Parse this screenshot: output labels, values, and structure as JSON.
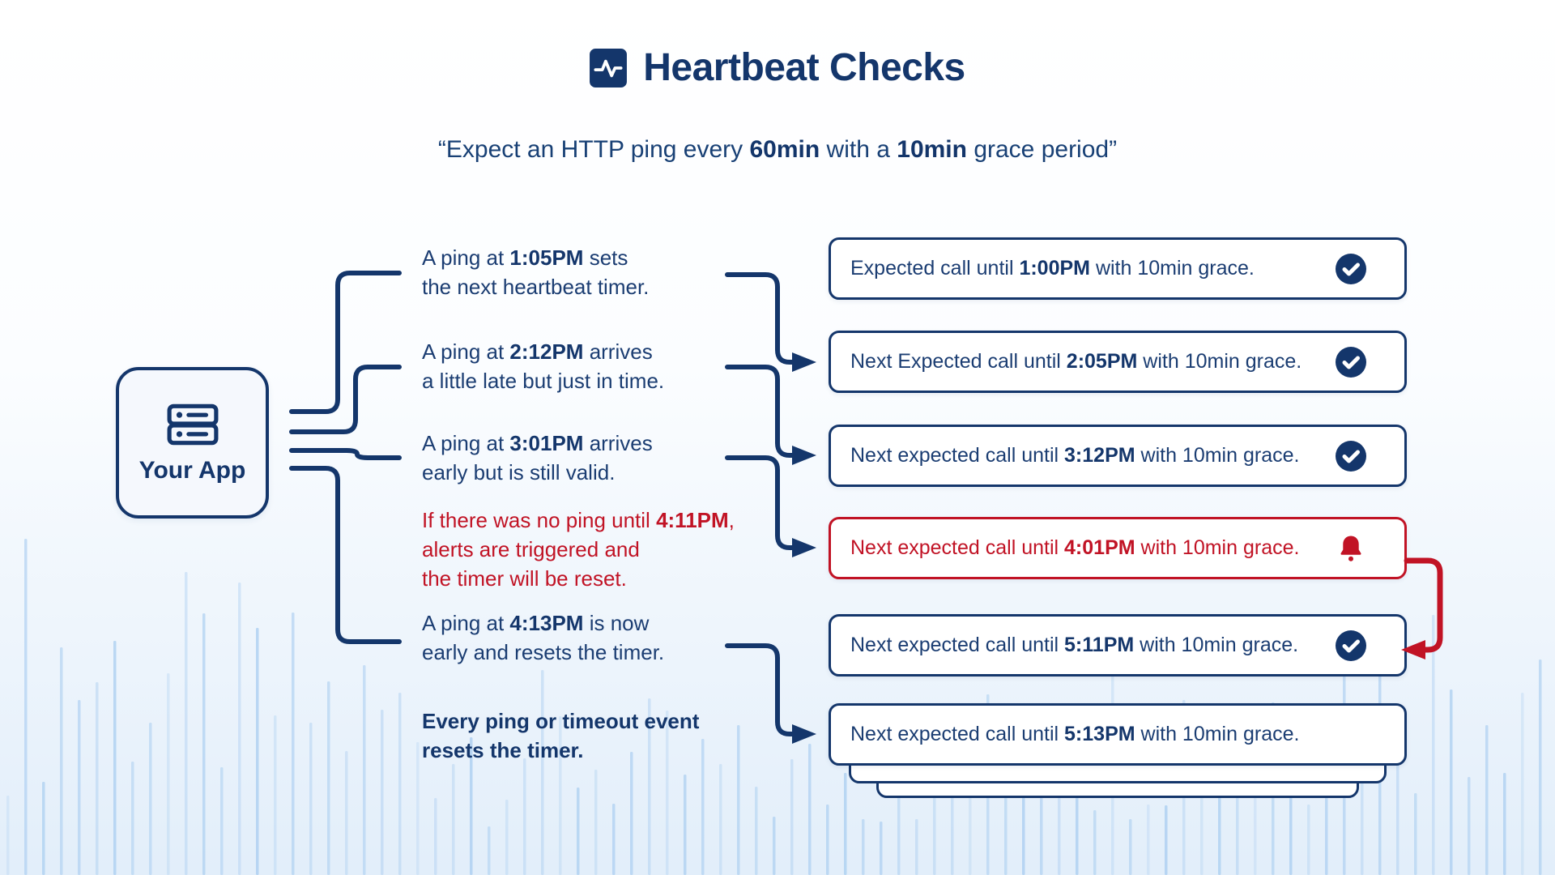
{
  "colors": {
    "navy": "#14366b",
    "red": "#c11325",
    "box_bg": "#ffffff",
    "app_box_bg": "#f5f8fd",
    "wave": "#a9cdf0"
  },
  "header": {
    "icon": "heartbeat-pulse-icon",
    "title": "Heartbeat Checks",
    "subtitle": [
      {
        "t": "“Expect an HTTP ping every ",
        "b": false
      },
      {
        "t": "60min",
        "b": true
      },
      {
        "t": " with a ",
        "b": false
      },
      {
        "t": "10min",
        "b": true
      },
      {
        "t": " grace period”",
        "b": false
      }
    ]
  },
  "app": {
    "icon": "server-icon",
    "label": "Your App"
  },
  "notes": [
    {
      "id": "ping-105",
      "color": "navy",
      "bold_all": false,
      "lines": [
        [
          {
            "t": "A ping at ",
            "b": false
          },
          {
            "t": "1:05PM",
            "b": true
          },
          {
            "t": " sets",
            "b": false
          }
        ],
        [
          {
            "t": "the next heartbeat timer.",
            "b": false
          }
        ]
      ]
    },
    {
      "id": "ping-212",
      "color": "navy",
      "bold_all": false,
      "lines": [
        [
          {
            "t": "A ping at ",
            "b": false
          },
          {
            "t": "2:12PM",
            "b": true
          },
          {
            "t": " arrives",
            "b": false
          }
        ],
        [
          {
            "t": "a little late but just in time.",
            "b": false
          }
        ]
      ]
    },
    {
      "id": "ping-301",
      "color": "navy",
      "bold_all": false,
      "lines": [
        [
          {
            "t": "A ping at ",
            "b": false
          },
          {
            "t": "3:01PM",
            "b": true
          },
          {
            "t": " arrives",
            "b": false
          }
        ],
        [
          {
            "t": "early but is still valid.",
            "b": false
          }
        ]
      ]
    },
    {
      "id": "timeout-411",
      "color": "red",
      "bold_all": false,
      "lines": [
        [
          {
            "t": "If there was no ping until ",
            "b": false
          },
          {
            "t": "4:11PM",
            "b": true
          },
          {
            "t": ",",
            "b": false
          }
        ],
        [
          {
            "t": "alerts are triggered and",
            "b": false
          }
        ],
        [
          {
            "t": "the timer will be reset.",
            "b": false
          }
        ]
      ]
    },
    {
      "id": "ping-413",
      "color": "navy",
      "bold_all": false,
      "lines": [
        [
          {
            "t": "A ping at ",
            "b": false
          },
          {
            "t": "4:13PM",
            "b": true
          },
          {
            "t": " is now",
            "b": false
          }
        ],
        [
          {
            "t": "early and resets the timer.",
            "b": false
          }
        ]
      ]
    },
    {
      "id": "reset-rule",
      "color": "navy",
      "bold_all": true,
      "lines": [
        [
          {
            "t": "Every ping or timeout event",
            "b": true
          }
        ],
        [
          {
            "t": "resets the timer.",
            "b": true
          }
        ]
      ]
    }
  ],
  "checks": [
    {
      "id": "until-100",
      "variant": "ok",
      "icon": "check-circle-icon",
      "text": [
        {
          "t": "Expected call until ",
          "b": false
        },
        {
          "t": "1:00PM",
          "b": true
        },
        {
          "t": " with 10min grace.",
          "b": false
        }
      ]
    },
    {
      "id": "until-205",
      "variant": "ok",
      "icon": "check-circle-icon",
      "text": [
        {
          "t": "Next Expected call until ",
          "b": false
        },
        {
          "t": "2:05PM",
          "b": true
        },
        {
          "t": " with 10min grace.",
          "b": false
        }
      ]
    },
    {
      "id": "until-312",
      "variant": "ok",
      "icon": "check-circle-icon",
      "text": [
        {
          "t": "Next expected call until ",
          "b": false
        },
        {
          "t": "3:12PM",
          "b": true
        },
        {
          "t": " with 10min grace.",
          "b": false
        }
      ]
    },
    {
      "id": "until-401",
      "variant": "alert",
      "icon": "alert-bell-icon",
      "text": [
        {
          "t": "Next expected call until ",
          "b": false
        },
        {
          "t": "4:01PM",
          "b": true
        },
        {
          "t": " with 10min grace.",
          "b": false
        }
      ]
    },
    {
      "id": "until-511",
      "variant": "ok",
      "icon": "check-circle-icon",
      "text": [
        {
          "t": "Next expected call until ",
          "b": false
        },
        {
          "t": "5:11PM",
          "b": true
        },
        {
          "t": " with 10min grace.",
          "b": false
        }
      ]
    },
    {
      "id": "until-513",
      "variant": "ok",
      "icon": "none",
      "text": [
        {
          "t": "Next expected call until ",
          "b": false
        },
        {
          "t": "5:13PM",
          "b": true
        },
        {
          "t": " with 10min grace.",
          "b": false
        }
      ]
    }
  ]
}
